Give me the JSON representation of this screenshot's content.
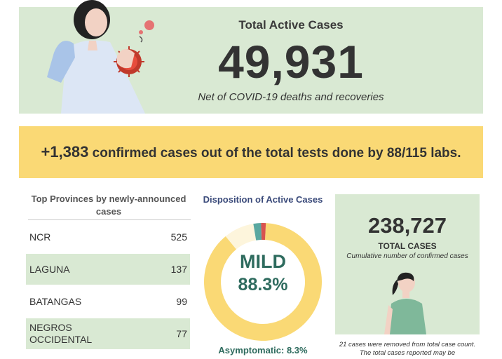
{
  "active": {
    "title": "Total Active Cases",
    "value": "49,931",
    "subtitle": "Net of COVID-19 deaths and recoveries"
  },
  "confirmed": {
    "value": "+1,383",
    "text": " confirmed cases out of the total tests done by 88/115 labs."
  },
  "provinces": {
    "title": "Top Provinces by newly-announced cases",
    "rows": [
      {
        "name": "NCR",
        "value": "525"
      },
      {
        "name": "LAGUNA",
        "value": "137"
      },
      {
        "name": "BATANGAS",
        "value": "99"
      },
      {
        "name": "NEGROS OCCIDENTAL",
        "value": "77"
      }
    ]
  },
  "disposition": {
    "title": "Disposition of Active Cases",
    "main_label": "MILD",
    "main_value": "88.3%",
    "asymptomatic_label": "Asymptomatic: 8.3%"
  },
  "chart_data": {
    "type": "pie",
    "categories": [
      "Mild",
      "Asymptomatic",
      "Other (red)",
      "Other (teal)"
    ],
    "values": [
      88.3,
      8.3,
      1.3,
      2.1
    ],
    "colors": [
      "#fad975",
      "#fdf5dc",
      "#d9534f",
      "#5aa8a0"
    ]
  },
  "total": {
    "value": "238,727",
    "label": "TOTAL CASES",
    "subtitle": "Cumulative number of confirmed cases",
    "note": "21 cases were removed from total case count. The total cases reported may be"
  },
  "colors": {
    "panel_green": "#d9e9d3",
    "band_yellow": "#fad975",
    "accent_teal": "#2e6b5e"
  }
}
